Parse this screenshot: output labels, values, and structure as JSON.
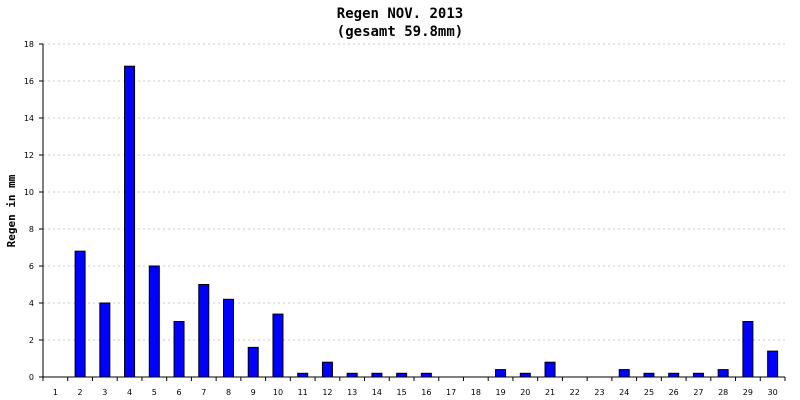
{
  "chart_data": {
    "type": "bar",
    "title": "Regen NOV. 2013",
    "subtitle": "(gesamt 59.8mm)",
    "xlabel": "",
    "ylabel": "Regen in mm",
    "categories": [
      "1",
      "2",
      "3",
      "4",
      "5",
      "6",
      "7",
      "8",
      "9",
      "10",
      "11",
      "12",
      "13",
      "14",
      "15",
      "16",
      "17",
      "18",
      "19",
      "20",
      "21",
      "22",
      "23",
      "24",
      "25",
      "26",
      "27",
      "28",
      "29",
      "30"
    ],
    "values": [
      0,
      6.8,
      4.0,
      16.8,
      6.0,
      3.0,
      5.0,
      4.2,
      1.6,
      3.4,
      0.2,
      0.8,
      0.2,
      0.2,
      0.2,
      0.2,
      0,
      0,
      0.4,
      0.2,
      0.8,
      0,
      0,
      0.4,
      0.2,
      0.2,
      0.2,
      0.4,
      3.0,
      1.4
    ],
    "ylim": [
      0,
      18
    ],
    "yticks": [
      "0",
      "2",
      "4",
      "6",
      "8",
      "10",
      "12",
      "14",
      "16",
      "18"
    ],
    "grid": "horizontal dashed",
    "colors": {
      "bar": "#0000ff",
      "bar_border": "#000000",
      "grid": "#c8c8c8",
      "axis": "#000000"
    }
  }
}
